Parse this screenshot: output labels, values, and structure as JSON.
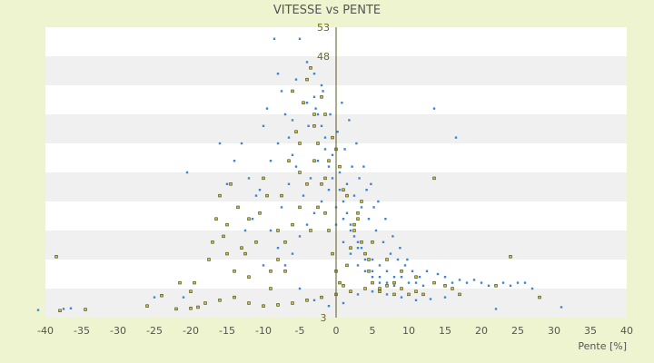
{
  "chart_data": {
    "type": "scatter",
    "title": "VITESSE vs PENTE",
    "xlabel": "Pente [%]",
    "ylabel": "",
    "xlim": [
      -40,
      40
    ],
    "ylim": [
      3,
      53
    ],
    "x_ticks": [
      "-40",
      "-35",
      "-30",
      "-25",
      "-20",
      "-15",
      "-10",
      "-5",
      "0",
      "5",
      "10",
      "15",
      "20",
      "25",
      "30",
      "35",
      "40"
    ],
    "y_ticks": [
      "3",
      "8",
      "13",
      "18",
      "23",
      "28",
      "33",
      "38",
      "43",
      "48",
      "53"
    ],
    "y_tick_labels_visible": [
      "3",
      "48",
      "53"
    ],
    "colors": {
      "background": "#eef3d0",
      "band_light": "#ffffff",
      "band_dark": "#f0f0f0",
      "series_blue": "#3d85d1",
      "series_yellow": "#c9c43a",
      "series_yellow_edge": "#3b3a12",
      "zero_axis": "#5a5a1a"
    },
    "series": [
      {
        "color": "#3d85d1",
        "points": [
          [
            -41,
            4.3
          ],
          [
            -37.5,
            4.5
          ],
          [
            -36.5,
            4.6
          ],
          [
            -25,
            6.5
          ],
          [
            -16,
            33
          ],
          [
            -11,
            24
          ],
          [
            -10,
            36
          ],
          [
            -9.5,
            39
          ],
          [
            -8.5,
            51
          ],
          [
            -8,
            45
          ],
          [
            -7.5,
            42
          ],
          [
            -7,
            38
          ],
          [
            -6.5,
            34
          ],
          [
            -6,
            31
          ],
          [
            -5,
            51
          ],
          [
            -5.5,
            44
          ],
          [
            -4,
            47
          ],
          [
            -3,
            45
          ],
          [
            -3,
            41
          ],
          [
            -2.5,
            38
          ],
          [
            -2,
            36
          ],
          [
            -1.5,
            32
          ],
          [
            -1,
            29
          ],
          [
            -0.5,
            27
          ],
          [
            0.5,
            25
          ],
          [
            1,
            23
          ],
          [
            1.5,
            21
          ],
          [
            2,
            19
          ],
          [
            2.5,
            17
          ],
          [
            3,
            16
          ],
          [
            3.5,
            15
          ],
          [
            4,
            14
          ],
          [
            5,
            13
          ],
          [
            6,
            12
          ],
          [
            7,
            11
          ],
          [
            8,
            10
          ],
          [
            9,
            10
          ],
          [
            10,
            9
          ],
          [
            11,
            9
          ],
          [
            12,
            8.5
          ],
          [
            13.5,
            39
          ],
          [
            16,
            9
          ],
          [
            16.5,
            34
          ],
          [
            18,
            9
          ],
          [
            19,
            9.5
          ],
          [
            21,
            8.5
          ],
          [
            22,
            4.5
          ],
          [
            23,
            9
          ],
          [
            25,
            9
          ],
          [
            26,
            9
          ],
          [
            31,
            4.8
          ],
          [
            -21,
            6.5
          ],
          [
            -20.5,
            28
          ],
          [
            -14,
            30
          ],
          [
            -13,
            33
          ],
          [
            -12,
            27
          ],
          [
            -11.5,
            20
          ],
          [
            -9,
            18
          ],
          [
            -8,
            15
          ],
          [
            -7.5,
            22
          ],
          [
            -6.5,
            26
          ],
          [
            -5.5,
            29
          ],
          [
            -4.5,
            24
          ],
          [
            -3.5,
            27
          ],
          [
            -2.5,
            30
          ],
          [
            -1.5,
            34
          ],
          [
            -0.5,
            31
          ],
          [
            0.5,
            28
          ],
          [
            1.5,
            26
          ],
          [
            2.5,
            24
          ],
          [
            3.5,
            22
          ],
          [
            4.5,
            20
          ],
          [
            5.5,
            18
          ],
          [
            6.5,
            16
          ],
          [
            7.5,
            14
          ],
          [
            8.5,
            13
          ],
          [
            9.5,
            12
          ],
          [
            10.5,
            11
          ],
          [
            11.5,
            10
          ],
          [
            0.8,
            40
          ],
          [
            1.8,
            37
          ],
          [
            2.8,
            33
          ],
          [
            3.8,
            29
          ],
          [
            4.8,
            26
          ],
          [
            5.8,
            23
          ],
          [
            6.8,
            20
          ],
          [
            7.8,
            17
          ],
          [
            8.8,
            15
          ],
          [
            9.8,
            13
          ],
          [
            -3.8,
            36
          ],
          [
            -2.8,
            39
          ],
          [
            -1.8,
            42
          ],
          [
            -0.8,
            38
          ],
          [
            0.2,
            35
          ],
          [
            1.2,
            32
          ],
          [
            2.2,
            29
          ],
          [
            3.2,
            27
          ],
          [
            4.2,
            25
          ],
          [
            5.2,
            22
          ],
          [
            -7,
            12
          ],
          [
            -6,
            14
          ],
          [
            -5,
            17
          ],
          [
            -4,
            19
          ],
          [
            -3,
            21
          ],
          [
            -2,
            23
          ],
          [
            -1,
            25
          ],
          [
            0,
            22
          ],
          [
            1,
            20
          ],
          [
            2,
            18
          ],
          [
            3,
            15
          ],
          [
            4,
            13
          ],
          [
            5,
            11
          ],
          [
            6,
            10
          ],
          [
            7,
            9
          ],
          [
            8,
            8.5
          ],
          [
            12.5,
            11
          ],
          [
            14,
            10.5
          ],
          [
            15,
            10
          ],
          [
            17,
            9.5
          ],
          [
            20,
            9
          ],
          [
            24,
            8.5
          ],
          [
            27,
            8
          ],
          [
            -9,
            30
          ],
          [
            -10.5,
            25
          ],
          [
            -8,
            33
          ],
          [
            -6,
            37
          ],
          [
            -4,
            40
          ],
          [
            -2,
            43
          ],
          [
            0,
            19
          ],
          [
            1,
            16
          ],
          [
            2,
            14
          ],
          [
            3,
            12
          ],
          [
            4,
            11
          ],
          [
            5,
            10
          ],
          [
            6,
            9
          ],
          [
            7,
            8.5
          ],
          [
            -15,
            26
          ],
          [
            -12.5,
            18
          ],
          [
            -10,
            12
          ],
          [
            -5,
            8
          ],
          [
            -3,
            6
          ],
          [
            -1,
            5
          ],
          [
            1,
            5.5
          ],
          [
            3,
            7
          ],
          [
            5,
            7.5
          ],
          [
            7,
            7
          ],
          [
            9,
            6.5
          ],
          [
            11,
            6
          ],
          [
            13,
            6.2
          ],
          [
            15,
            6.5
          ]
        ]
      },
      {
        "color": "#c9c43a",
        "points": [
          [
            -38,
            4.2
          ],
          [
            -38.5,
            13.5
          ],
          [
            -34.5,
            4.4
          ],
          [
            -26,
            5
          ],
          [
            -22,
            4.5
          ],
          [
            -21.5,
            9
          ],
          [
            -20,
            7.5
          ],
          [
            -19.5,
            9
          ],
          [
            -19,
            4.8
          ],
          [
            -17.5,
            13
          ],
          [
            -17,
            16
          ],
          [
            -16.5,
            20
          ],
          [
            -16,
            24
          ],
          [
            -15.5,
            17
          ],
          [
            -15,
            19
          ],
          [
            -14.5,
            26
          ],
          [
            -14,
            11
          ],
          [
            -13,
            15
          ],
          [
            -12.5,
            14
          ],
          [
            -12,
            10
          ],
          [
            -11,
            16
          ],
          [
            -10.5,
            21
          ],
          [
            -10,
            27
          ],
          [
            -9.5,
            24
          ],
          [
            -9,
            8
          ],
          [
            -8,
            18
          ],
          [
            -7.5,
            24
          ],
          [
            -7,
            11
          ],
          [
            -6.5,
            30
          ],
          [
            -6,
            42
          ],
          [
            -5.5,
            35
          ],
          [
            -5,
            28
          ],
          [
            -4.5,
            40
          ],
          [
            -4,
            44
          ],
          [
            -3.5,
            46
          ],
          [
            -3,
            38
          ],
          [
            -2.5,
            33
          ],
          [
            -2,
            26
          ],
          [
            -1.5,
            21
          ],
          [
            -1,
            18
          ],
          [
            -0.5,
            14
          ],
          [
            0,
            11
          ],
          [
            0.5,
            9
          ],
          [
            1,
            8.5
          ],
          [
            1.5,
            12
          ],
          [
            2,
            15
          ],
          [
            2.5,
            18
          ],
          [
            3,
            21
          ],
          [
            3.5,
            23
          ],
          [
            4,
            14
          ],
          [
            4.5,
            11
          ],
          [
            5,
            9
          ],
          [
            6,
            8
          ],
          [
            7,
            8.5
          ],
          [
            8,
            9
          ],
          [
            9,
            8
          ],
          [
            10,
            7
          ],
          [
            11,
            7.5
          ],
          [
            12,
            7
          ],
          [
            13.5,
            27
          ],
          [
            13.5,
            9
          ],
          [
            15,
            8.5
          ],
          [
            16,
            8
          ],
          [
            17,
            7
          ],
          [
            22,
            8.5
          ],
          [
            24,
            13.5
          ],
          [
            28,
            6.5
          ],
          [
            -18,
            5.5
          ],
          [
            -16,
            6
          ],
          [
            -14,
            6.5
          ],
          [
            -12,
            5.5
          ],
          [
            -10,
            5
          ],
          [
            -8,
            5.2
          ],
          [
            -6,
            5.5
          ],
          [
            -4,
            6
          ],
          [
            -2,
            6.5
          ],
          [
            0,
            7
          ],
          [
            2,
            7.5
          ],
          [
            4,
            8
          ],
          [
            6,
            7.5
          ],
          [
            8,
            7
          ],
          [
            -5,
            33
          ],
          [
            -3,
            36
          ],
          [
            -1,
            30
          ],
          [
            1,
            25
          ],
          [
            3,
            20
          ],
          [
            5,
            16
          ],
          [
            7,
            13
          ],
          [
            9,
            11
          ],
          [
            11,
            10
          ],
          [
            -2,
            41
          ],
          [
            -1.5,
            38
          ],
          [
            -0.5,
            34
          ],
          [
            -3,
            30
          ],
          [
            -4,
            26
          ],
          [
            -5,
            22
          ],
          [
            -6,
            19
          ],
          [
            -7,
            16
          ],
          [
            -8,
            13
          ],
          [
            -9,
            11
          ],
          [
            -3.5,
            18
          ],
          [
            -2.5,
            22
          ],
          [
            -1.5,
            27
          ],
          [
            0,
            32
          ],
          [
            0.5,
            29
          ],
          [
            1.5,
            24
          ],
          [
            2.5,
            19
          ],
          [
            3.5,
            16
          ],
          [
            4.5,
            13
          ],
          [
            -12,
            20
          ],
          [
            -13.5,
            22
          ],
          [
            -15,
            14
          ],
          [
            -20,
            4.6
          ],
          [
            -24,
            6.8
          ]
        ]
      }
    ]
  }
}
